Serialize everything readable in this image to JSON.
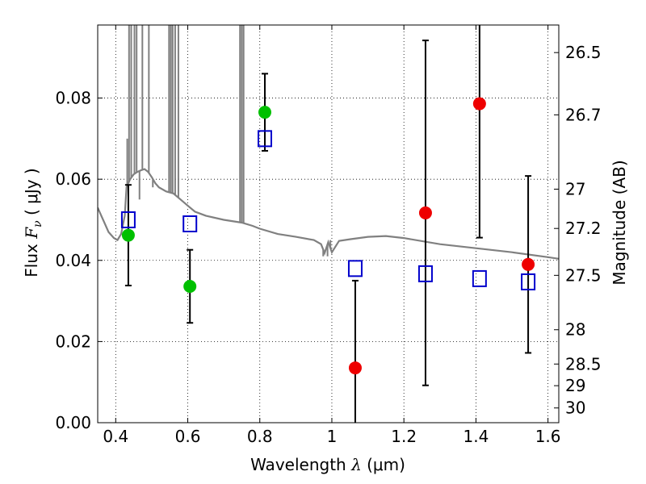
{
  "chart_data": {
    "type": "scatter",
    "xlabel": {
      "prefix": "Wavelength  ",
      "symbol": "λ",
      "unit": " (μm)"
    },
    "ylabel": {
      "prefix": "Flux  ",
      "symbol": "F",
      "subscript": "ν",
      "unit": "  ( μJy )"
    },
    "ylabel_right": "Magnitude (AB)",
    "xlim": [
      0.35,
      1.63
    ],
    "ylim": [
      0.0,
      0.098
    ],
    "grid": true,
    "x_ticks": [
      {
        "value": 0.4,
        "label": "0.4"
      },
      {
        "value": 0.6,
        "label": "0.6"
      },
      {
        "value": 0.8,
        "label": "0.8"
      },
      {
        "value": 1.0,
        "label": "1"
      },
      {
        "value": 1.2,
        "label": "1.2"
      },
      {
        "value": 1.4,
        "label": "1.4"
      },
      {
        "value": 1.6,
        "label": "1.6"
      }
    ],
    "y_ticks": [
      {
        "value": 0.0,
        "label": "0.00"
      },
      {
        "value": 0.02,
        "label": "0.02"
      },
      {
        "value": 0.04,
        "label": "0.04"
      },
      {
        "value": 0.06,
        "label": "0.06"
      },
      {
        "value": 0.08,
        "label": "0.08"
      }
    ],
    "mag_ticks": [
      {
        "value": 26.5,
        "label": "26.5"
      },
      {
        "value": 26.7,
        "label": "26.7"
      },
      {
        "value": 27.0,
        "label": "27"
      },
      {
        "value": 27.2,
        "label": "27.2"
      },
      {
        "value": 27.5,
        "label": "27.5"
      },
      {
        "value": 28.0,
        "label": "28"
      },
      {
        "value": 28.5,
        "label": "28.5"
      },
      {
        "value": 29.0,
        "label": "29"
      },
      {
        "value": 30.0,
        "label": "30"
      }
    ],
    "colors": {
      "model": "#808080",
      "green": "#00c000",
      "red": "#ee0000",
      "squares": "#0000cc",
      "errorbar": "#000000"
    },
    "series": [
      {
        "marker": "circle-green",
        "points": [
          {
            "x": 0.435,
            "y": 0.0462,
            "err": 0.0124
          },
          {
            "x": 0.606,
            "y": 0.0336,
            "err": 0.009
          },
          {
            "x": 0.814,
            "y": 0.0765,
            "err": 0.0095
          }
        ]
      },
      {
        "marker": "circle-red",
        "points": [
          {
            "x": 1.065,
            "y": 0.0135,
            "err": 0.0215
          },
          {
            "x": 1.26,
            "y": 0.0517,
            "err": 0.0425
          },
          {
            "x": 1.41,
            "y": 0.0786,
            "err": 0.033
          },
          {
            "x": 1.545,
            "y": 0.039,
            "err": 0.0218
          }
        ]
      },
      {
        "marker": "square-blue",
        "points": [
          {
            "x": 0.435,
            "y": 0.05
          },
          {
            "x": 0.606,
            "y": 0.049
          },
          {
            "x": 0.814,
            "y": 0.07
          },
          {
            "x": 1.065,
            "y": 0.038
          },
          {
            "x": 1.26,
            "y": 0.0367
          },
          {
            "x": 1.41,
            "y": 0.0355
          },
          {
            "x": 1.545,
            "y": 0.0347
          }
        ]
      },
      {
        "marker": "line-gray",
        "points": [
          [
            0.35,
            0.053
          ],
          [
            0.365,
            0.05
          ],
          [
            0.38,
            0.047
          ],
          [
            0.395,
            0.0455
          ],
          [
            0.405,
            0.045
          ],
          [
            0.415,
            0.0465
          ],
          [
            0.425,
            0.051
          ],
          [
            0.43,
            0.058
          ],
          [
            0.44,
            0.06
          ],
          [
            0.45,
            0.0612
          ],
          [
            0.46,
            0.0618
          ],
          [
            0.47,
            0.0622
          ],
          [
            0.48,
            0.0625
          ],
          [
            0.49,
            0.0618
          ],
          [
            0.5,
            0.0605
          ],
          [
            0.51,
            0.059
          ],
          [
            0.52,
            0.058
          ],
          [
            0.54,
            0.057
          ],
          [
            0.56,
            0.0565
          ],
          [
            0.58,
            0.055
          ],
          [
            0.6,
            0.0535
          ],
          [
            0.62,
            0.052
          ],
          [
            0.65,
            0.051
          ],
          [
            0.7,
            0.05
          ],
          [
            0.75,
            0.0493
          ],
          [
            0.78,
            0.0485
          ],
          [
            0.8,
            0.0478
          ],
          [
            0.85,
            0.0465
          ],
          [
            0.9,
            0.0458
          ],
          [
            0.95,
            0.045
          ],
          [
            0.97,
            0.044
          ],
          [
            0.98,
            0.0418
          ],
          [
            0.99,
            0.0445
          ],
          [
            1.0,
            0.042
          ],
          [
            1.02,
            0.0448
          ],
          [
            1.05,
            0.0452
          ],
          [
            1.1,
            0.0458
          ],
          [
            1.15,
            0.046
          ],
          [
            1.2,
            0.0455
          ],
          [
            1.3,
            0.044
          ],
          [
            1.4,
            0.043
          ],
          [
            1.5,
            0.042
          ],
          [
            1.6,
            0.0408
          ],
          [
            1.63,
            0.0404
          ]
        ],
        "spikes": [
          [
            0.432,
            0.07
          ],
          [
            0.437,
            0.11
          ],
          [
            0.443,
            0.11
          ],
          [
            0.452,
            0.11
          ],
          [
            0.458,
            0.11
          ],
          [
            0.466,
            0.055
          ],
          [
            0.474,
            0.11
          ],
          [
            0.492,
            0.11
          ],
          [
            0.503,
            0.058
          ],
          [
            0.548,
            0.11
          ],
          [
            0.553,
            0.11
          ],
          [
            0.558,
            0.11
          ],
          [
            0.565,
            0.11
          ],
          [
            0.574,
            0.11
          ],
          [
            0.745,
            0.11
          ],
          [
            0.75,
            0.11
          ],
          [
            0.755,
            0.11
          ],
          [
            0.976,
            0.041
          ],
          [
            0.988,
            0.041
          ],
          [
            0.996,
            0.045
          ]
        ]
      }
    ]
  }
}
